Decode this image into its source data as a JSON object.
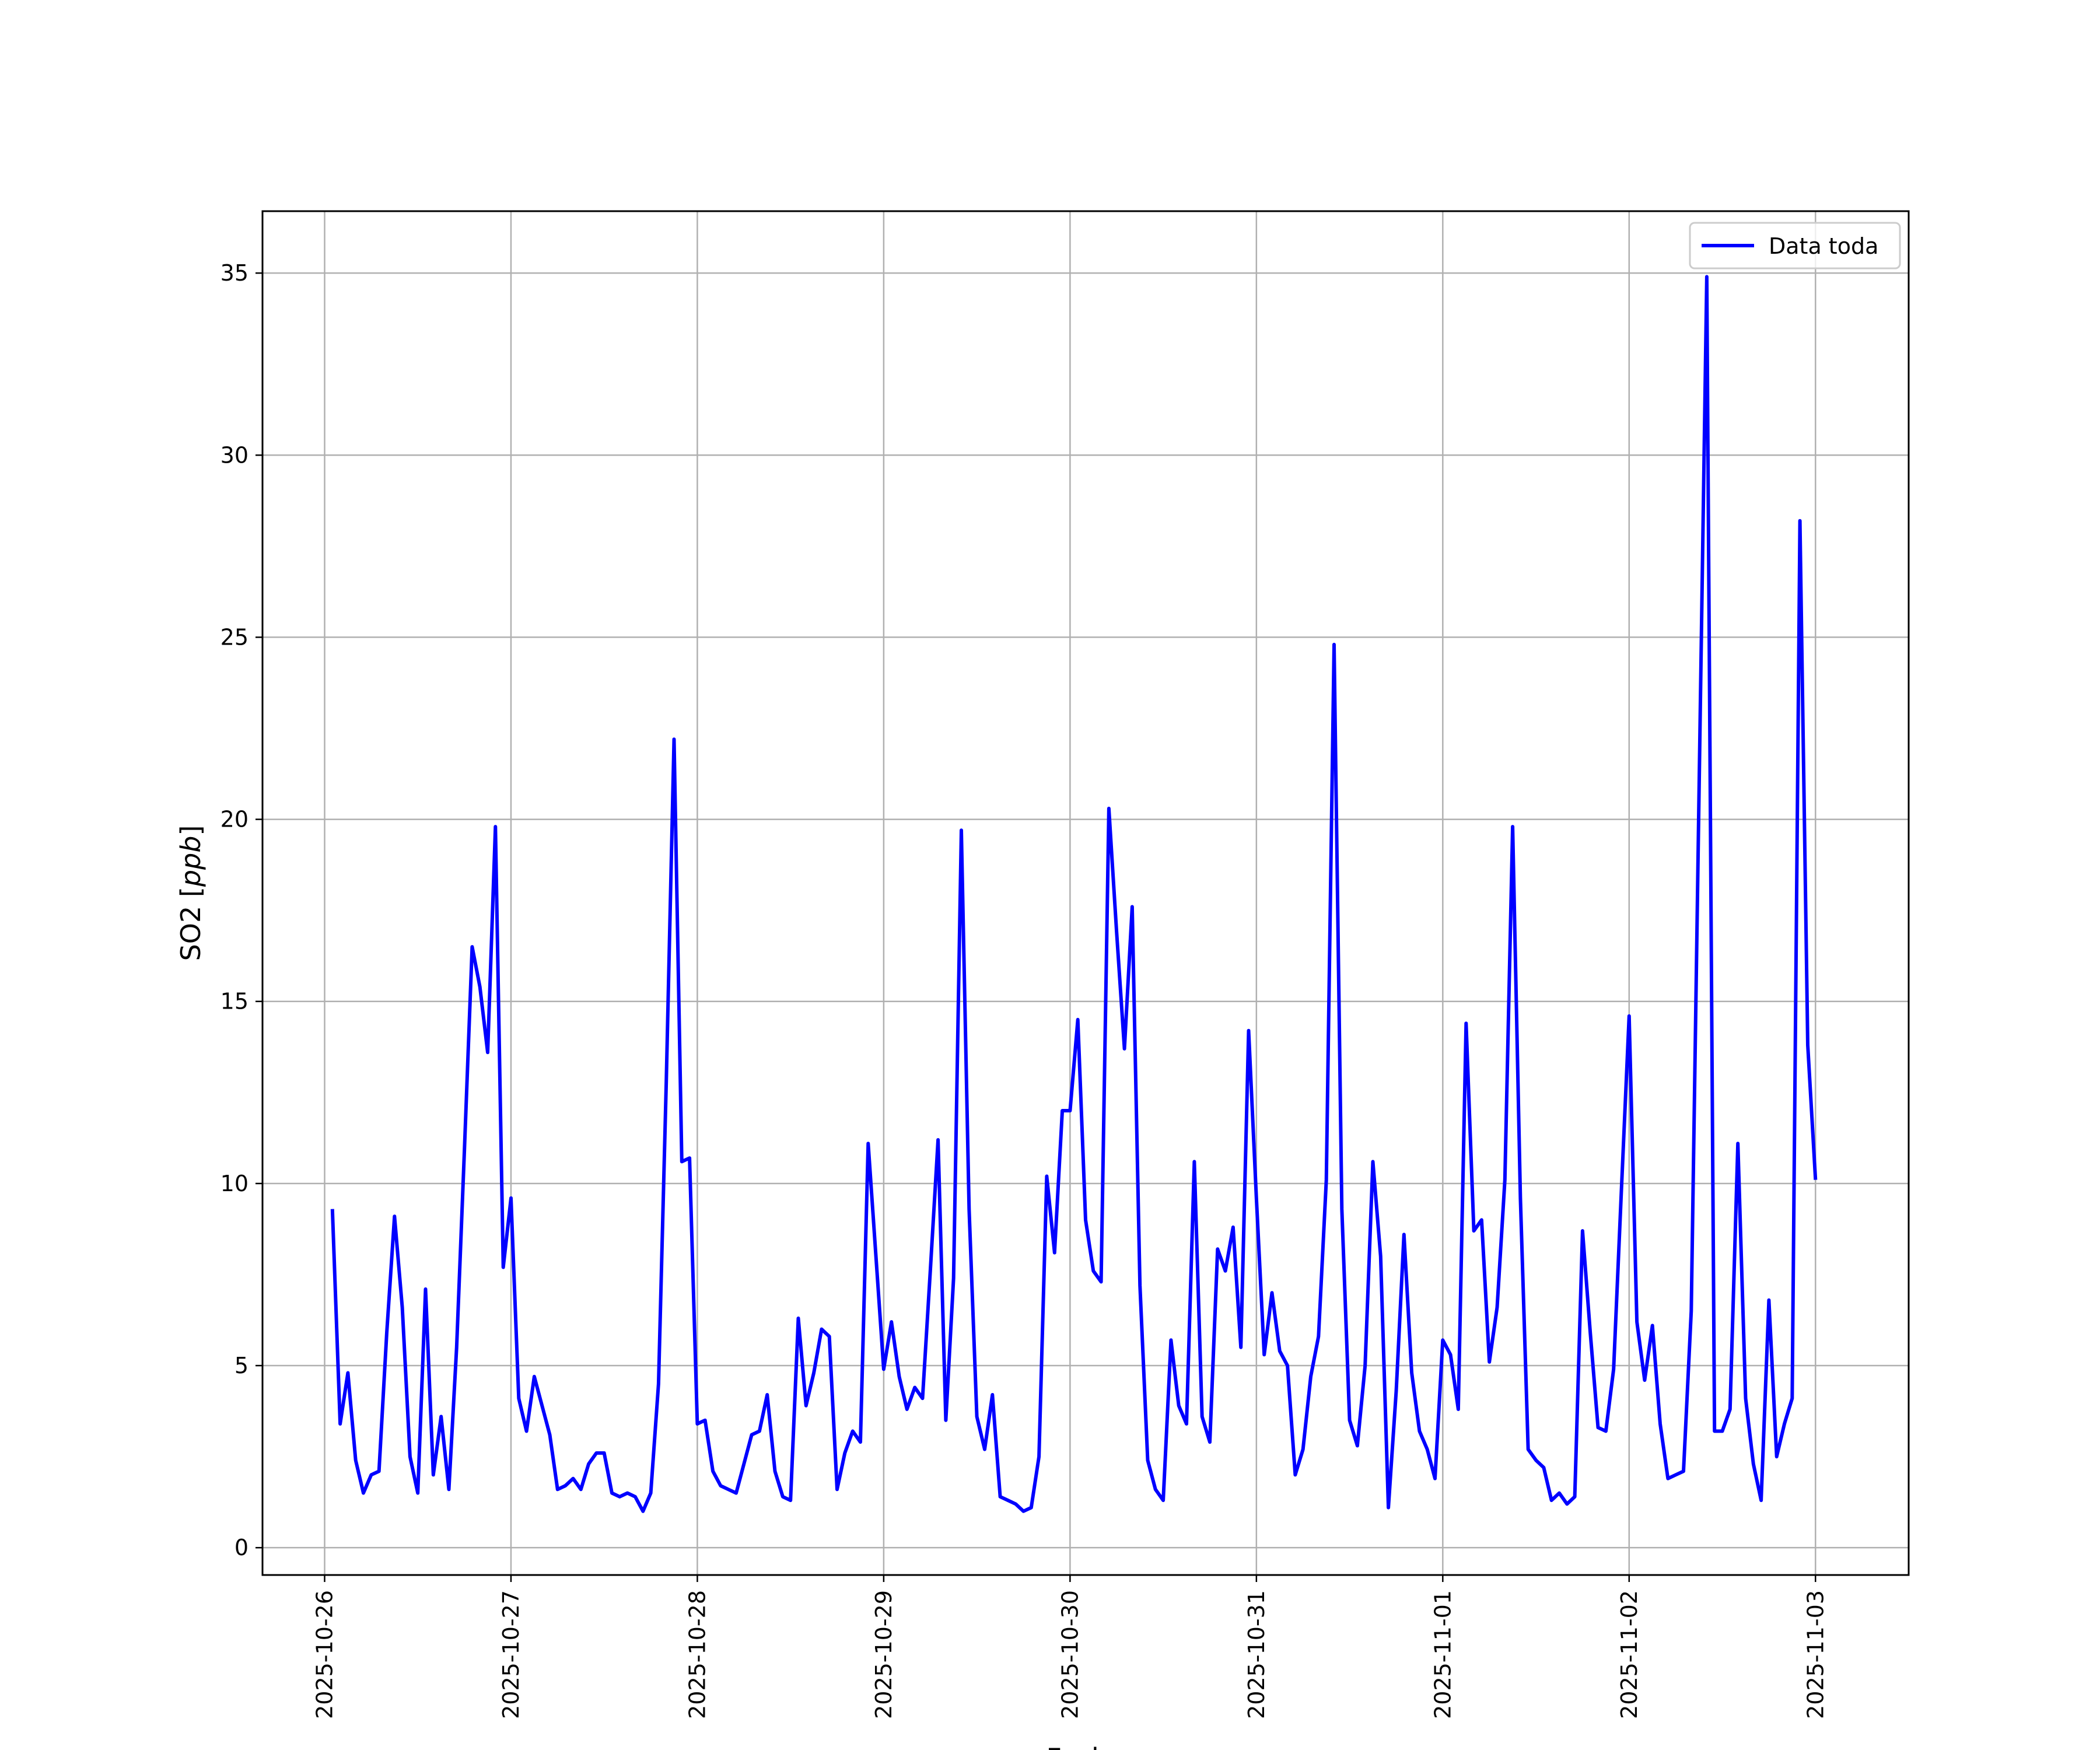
{
  "chart_data": {
    "type": "line",
    "xlabel": "Fecha",
    "ylabel_main": "SO2 [",
    "ylabel_unit": "ppb",
    "ylabel_close": "]",
    "xlim": [
      "2025-10-25T16:00",
      "2025-11-03T12:00"
    ],
    "ylim": [
      -0.75,
      36.7
    ],
    "yticks": [
      0,
      5,
      10,
      15,
      20,
      25,
      30,
      35
    ],
    "xticks": [
      "2025-10-26",
      "2025-10-27",
      "2025-10-28",
      "2025-10-29",
      "2025-10-30",
      "2025-10-31",
      "2025-11-01",
      "2025-11-02",
      "2025-11-03"
    ],
    "grid": true,
    "legend": {
      "position": "top-right",
      "entries": [
        "Data toda"
      ]
    },
    "series": [
      {
        "name": "Data toda",
        "color": "#0000ff",
        "start": "2025-10-26T01:00",
        "interval_hours": 1,
        "values": [
          9.3,
          3.4,
          4.8,
          2.4,
          1.5,
          2.0,
          2.1,
          5.9,
          9.1,
          6.6,
          2.5,
          1.5,
          7.1,
          2.0,
          3.6,
          1.6,
          5.5,
          10.9,
          16.5,
          15.4,
          13.6,
          19.8,
          7.7,
          9.6,
          4.1,
          3.2,
          4.7,
          3.9,
          3.1,
          1.6,
          1.7,
          1.9,
          1.6,
          2.3,
          2.6,
          2.6,
          1.5,
          1.4,
          1.5,
          1.4,
          1.0,
          1.5,
          4.5,
          12.8,
          22.2,
          10.6,
          10.7,
          3.4,
          3.5,
          2.1,
          1.7,
          1.6,
          1.5,
          2.3,
          3.1,
          3.2,
          4.2,
          2.1,
          1.4,
          1.3,
          6.3,
          3.9,
          4.8,
          6.0,
          5.8,
          1.6,
          2.6,
          3.2,
          2.9,
          11.1,
          8.0,
          4.9,
          6.2,
          4.7,
          3.8,
          4.4,
          4.1,
          7.6,
          11.2,
          3.5,
          7.4,
          19.7,
          9.3,
          3.6,
          2.7,
          4.2,
          1.4,
          1.3,
          1.2,
          1.0,
          1.1,
          2.5,
          10.2,
          8.1,
          12.0,
          12.0,
          14.5,
          9.0,
          7.6,
          7.3,
          20.3,
          16.9,
          13.7,
          17.6,
          7.2,
          2.4,
          1.6,
          1.3,
          5.7,
          3.9,
          3.4,
          10.6,
          3.6,
          2.9,
          8.2,
          7.6,
          8.8,
          5.5,
          14.2,
          9.6,
          5.3,
          7.0,
          5.4,
          5.0,
          2.0,
          2.7,
          4.7,
          5.8,
          10.1,
          24.8,
          9.3,
          3.5,
          2.8,
          5.0,
          10.6,
          8.0,
          1.1,
          4.3,
          8.6,
          4.8,
          3.2,
          2.7,
          1.9,
          5.7,
          5.3,
          3.8,
          14.4,
          8.7,
          9.0,
          5.1,
          6.6,
          10.1,
          19.8,
          9.6,
          2.7,
          2.4,
          2.2,
          1.3,
          1.5,
          1.2,
          1.4,
          8.7,
          5.9,
          3.3,
          3.2,
          4.9,
          9.8,
          14.6,
          6.2,
          4.6,
          6.1,
          3.4,
          1.9,
          2.0,
          2.1,
          6.5,
          20.7,
          34.9,
          3.2,
          3.2,
          3.8,
          11.1,
          4.1,
          2.3,
          1.3,
          6.8,
          2.5,
          3.4,
          4.1,
          28.2,
          13.8,
          10.1
        ]
      }
    ]
  }
}
